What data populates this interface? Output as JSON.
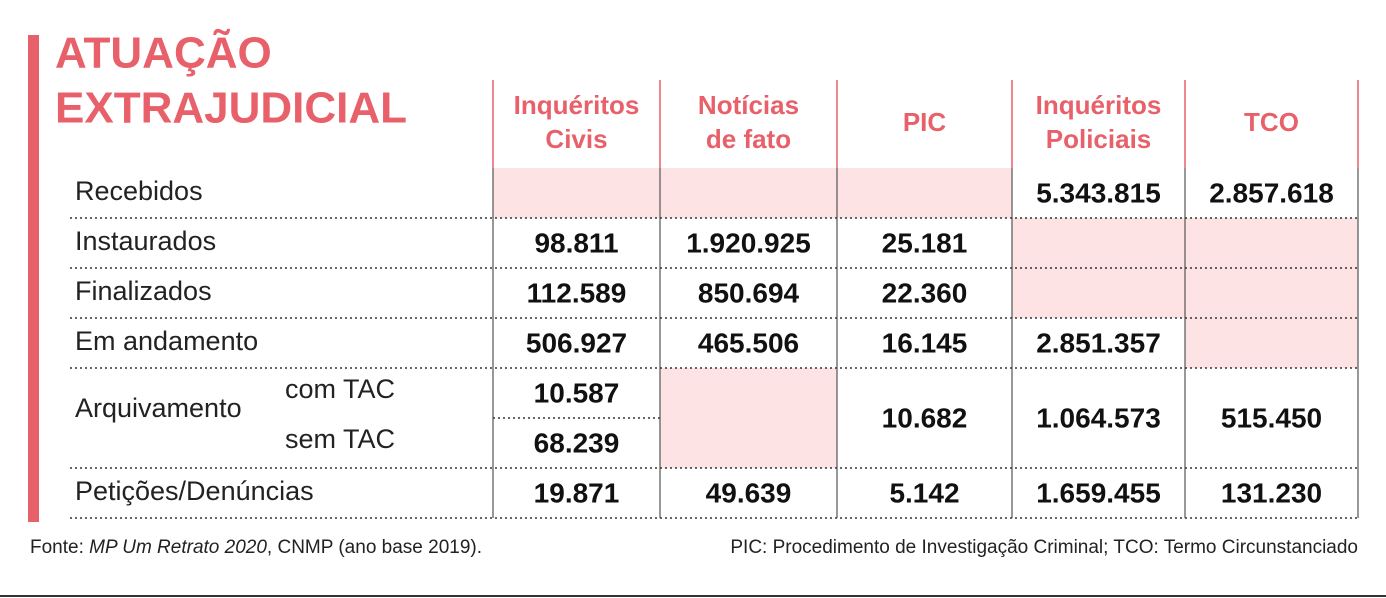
{
  "title": [
    "ATUAÇÃO",
    "EXTRAJUDICIAL"
  ],
  "table": {
    "columns": [
      [
        "Inquéritos",
        "Civis"
      ],
      [
        "Notícias",
        "de fato"
      ],
      [
        "PIC"
      ],
      [
        "Inquéritos",
        "Policiais"
      ],
      [
        "TCO"
      ]
    ],
    "rows": [
      {
        "label": "Recebidos",
        "cells": [
          null,
          null,
          null,
          "5.343.815",
          "2.857.618"
        ]
      },
      {
        "label": "Instaurados",
        "cells": [
          "98.811",
          "1.920.925",
          "25.181",
          null,
          null
        ]
      },
      {
        "label": "Finalizados",
        "cells": [
          "112.589",
          "850.694",
          "22.360",
          null,
          null
        ]
      },
      {
        "label": "Em andamento",
        "cells": [
          "506.927",
          "465.506",
          "16.145",
          "2.851.357",
          null
        ]
      },
      {
        "label": "Arquivamento",
        "sublabels": [
          "com TAC",
          "sem TAC"
        ],
        "cells": [
          [
            "10.587",
            "68.239"
          ],
          null,
          "10.682",
          "1.064.573",
          "515.450"
        ]
      },
      {
        "label": "Petições/Denúncias",
        "cells": [
          "19.871",
          "49.639",
          "5.142",
          "1.659.455",
          "131.230"
        ]
      }
    ]
  },
  "footer": {
    "source": [
      "Fonte: ",
      "MP Um Retrato 2020",
      ", CNMP (ano base 2019)."
    ],
    "note": "PIC: Procedimento de Investigação Criminal; TCO: Termo Circunstanciado"
  }
}
